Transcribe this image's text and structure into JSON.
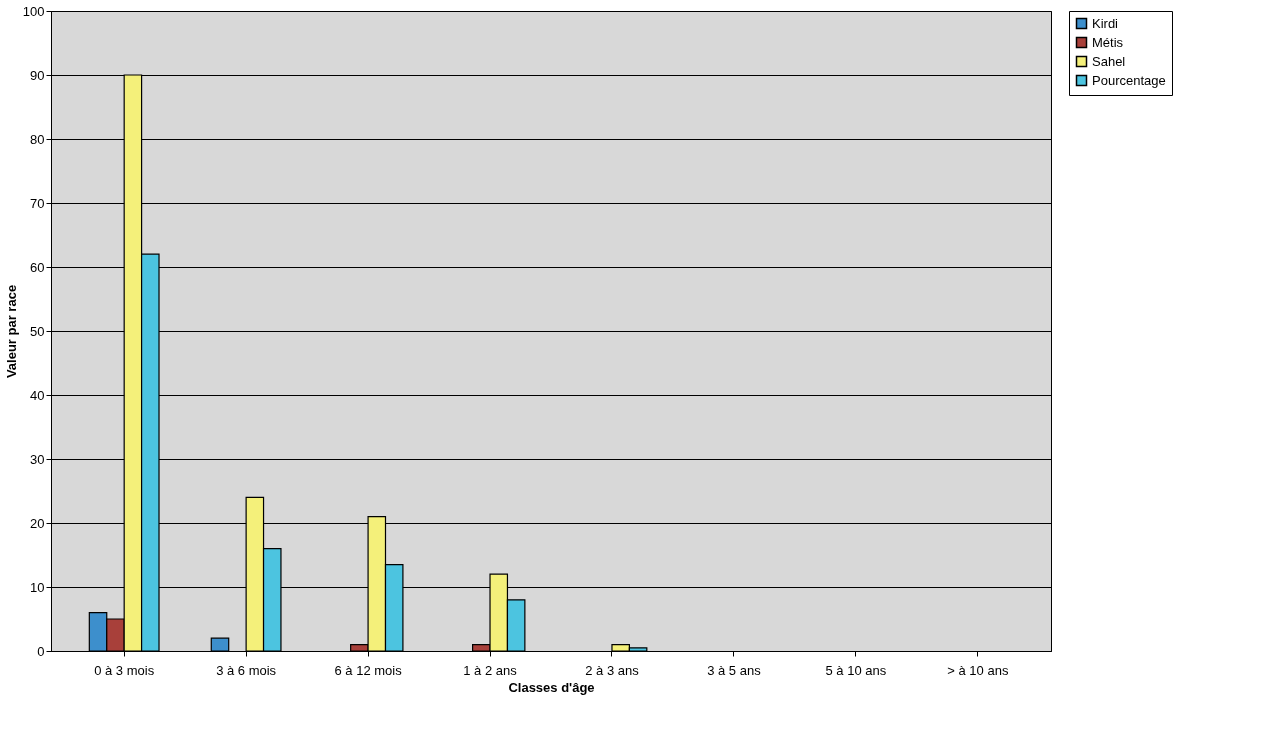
{
  "chart_data": {
    "type": "bar",
    "xlabel": "Classes d'âge",
    "ylabel": "Valeur par race",
    "categories": [
      "0 à 3 mois",
      "3 à 6 mois",
      "6 à 12 mois",
      "1 à 2 ans",
      "2 à 3 ans",
      "3 à 5 ans",
      "5 à 10 ans",
      "> à 10 ans"
    ],
    "series": [
      {
        "name": "Kirdi",
        "color": "#3d8fcc",
        "values": [
          6,
          2,
          0,
          0,
          0,
          0,
          0,
          0
        ]
      },
      {
        "name": "Métis",
        "color": "#a8403a",
        "values": [
          5,
          0,
          1,
          1,
          0,
          0,
          0,
          0
        ]
      },
      {
        "name": "Sahel",
        "color": "#f4f07a",
        "values": [
          90,
          24,
          21,
          12,
          1,
          0,
          0,
          0
        ]
      },
      {
        "name": "Pourcentage",
        "color": "#4cc4e0",
        "values": [
          62,
          16,
          13.5,
          8,
          0.5,
          0,
          0,
          0
        ]
      }
    ],
    "ylim": [
      0,
      100
    ],
    "yticks": [
      0,
      10,
      20,
      30,
      40,
      50,
      60,
      70,
      80,
      90,
      100
    ],
    "grid": "y",
    "legend": "right"
  }
}
